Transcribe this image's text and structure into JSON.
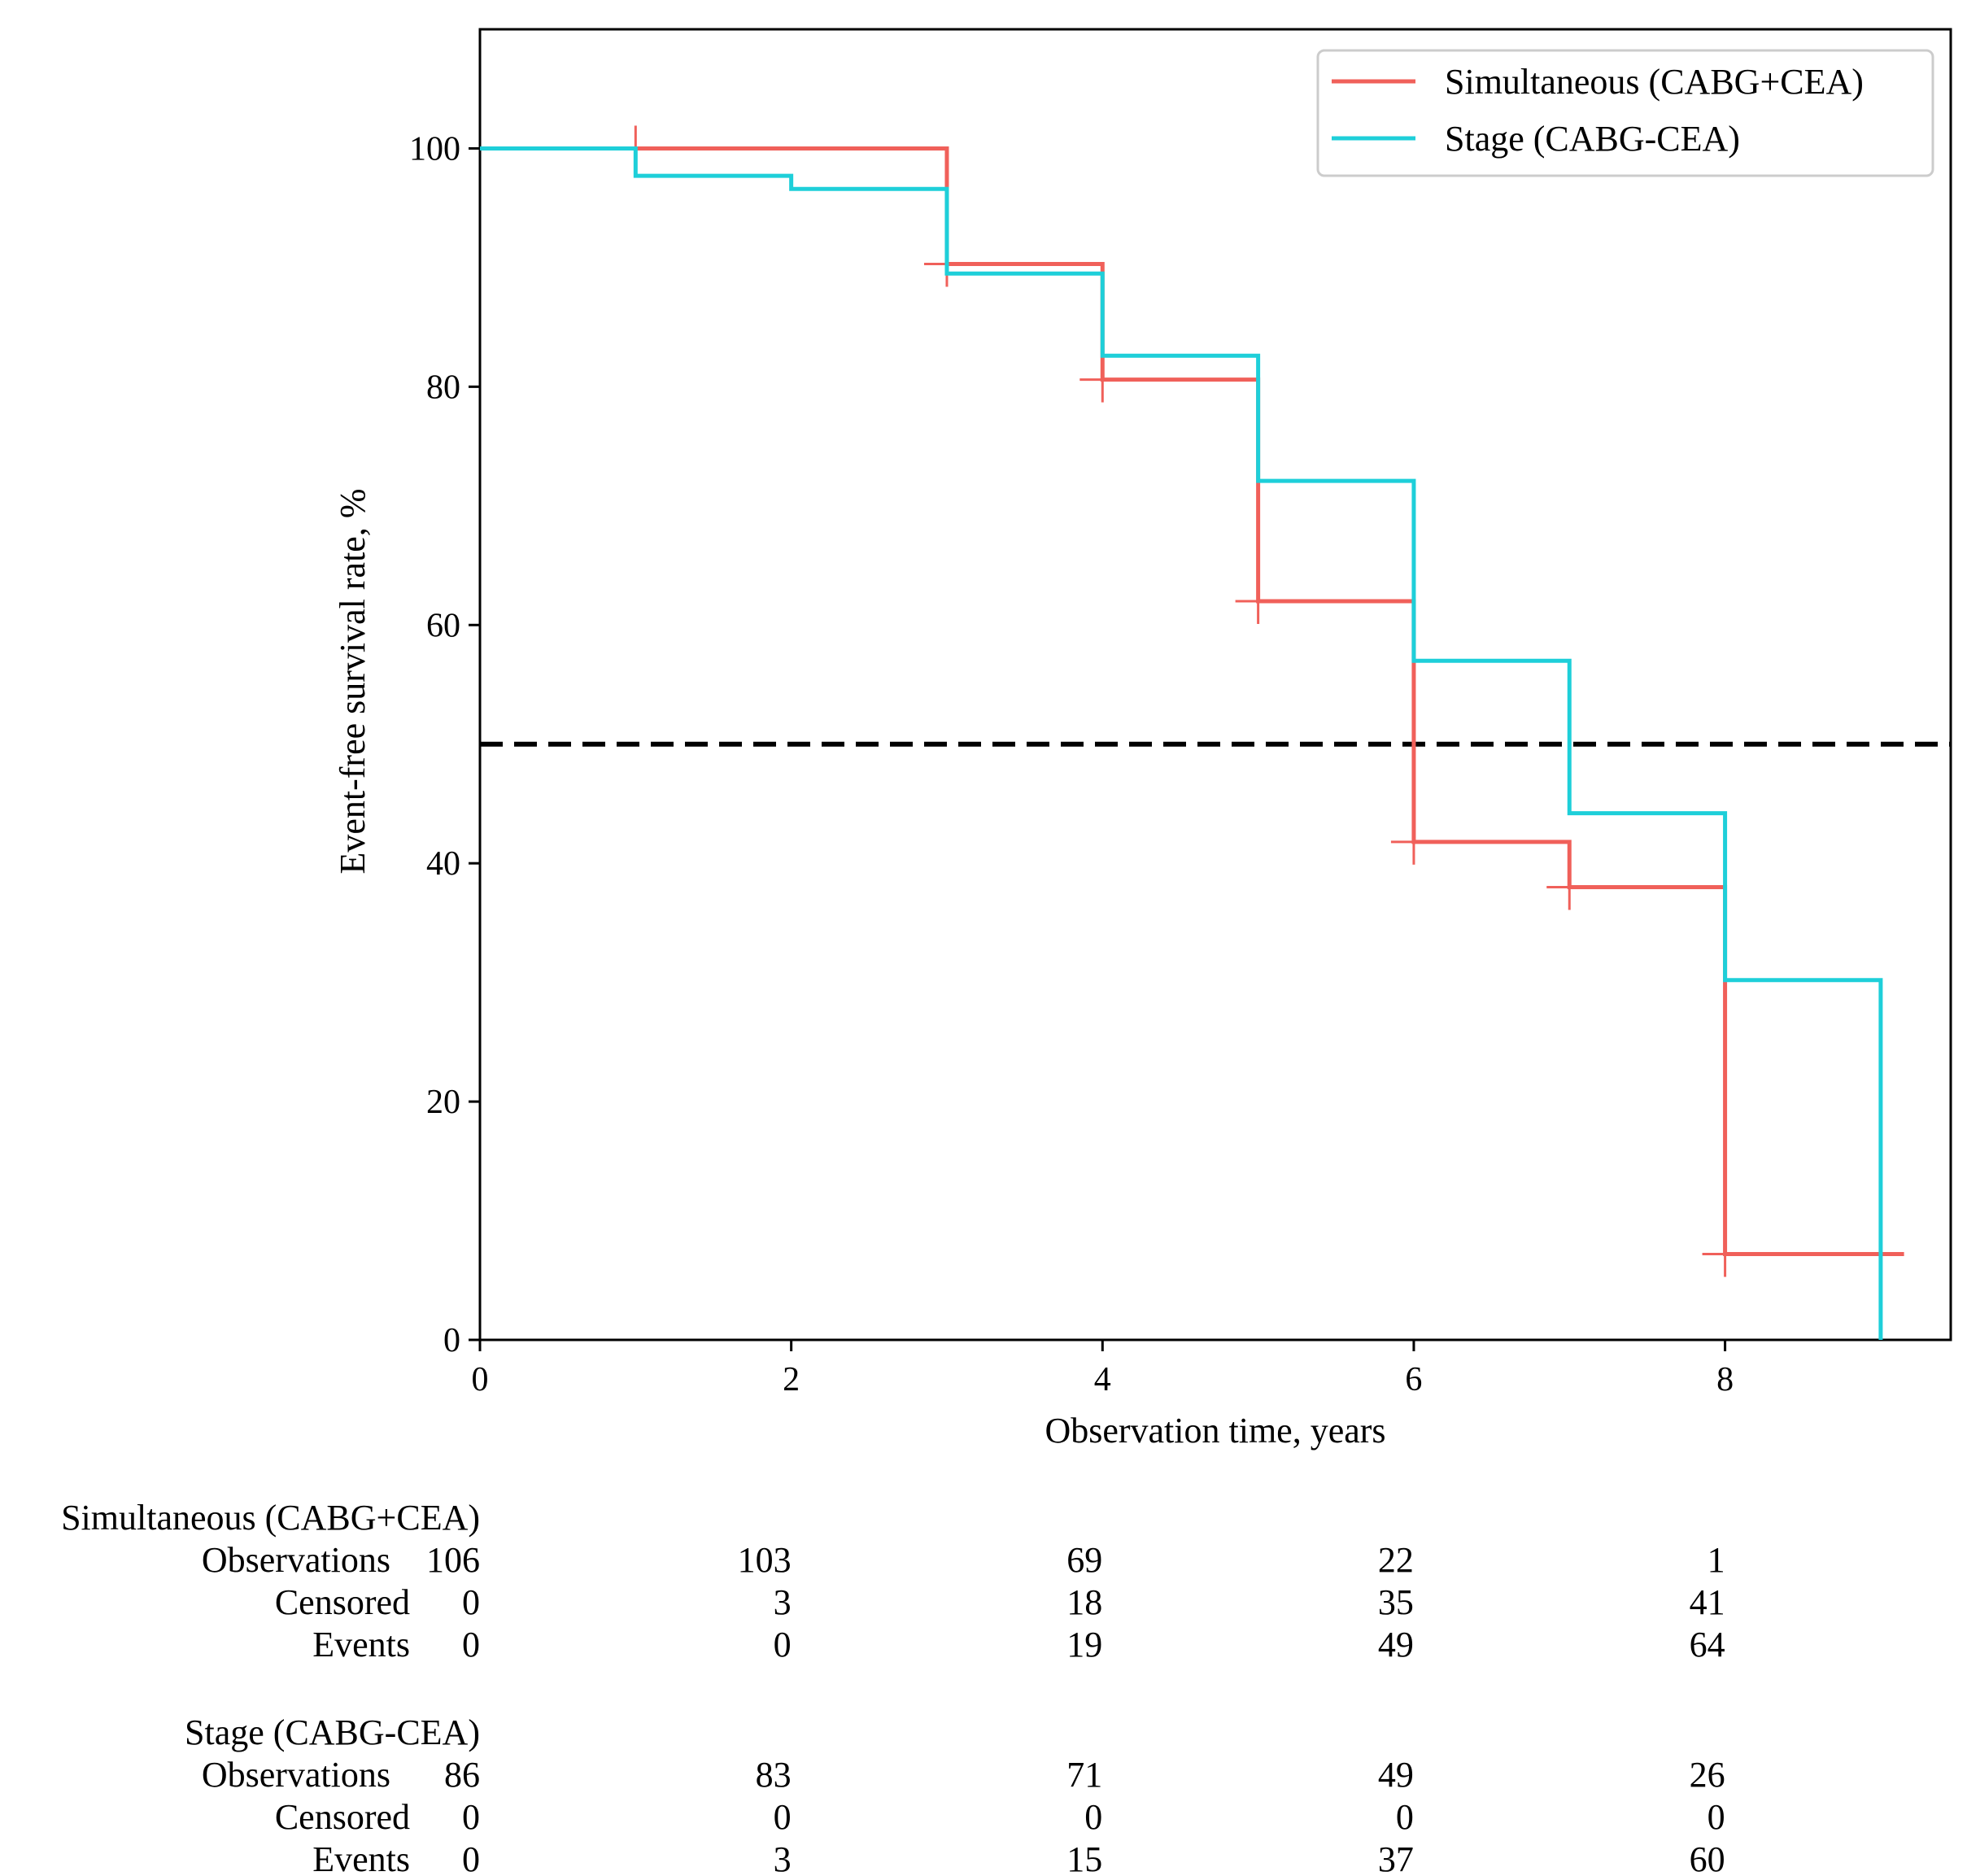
{
  "chart_data": {
    "type": "line",
    "subtype": "kaplan-meier step",
    "xlabel": "Observation time, years",
    "ylabel": "Event-free survival rate, %",
    "xlim": [
      0,
      9.45
    ],
    "ylim": [
      0,
      110
    ],
    "xticks": [
      0,
      2,
      4,
      6,
      8
    ],
    "yticks": [
      0,
      20,
      40,
      60,
      80,
      100
    ],
    "grid": false,
    "legend_position": "top-right",
    "reference_line": {
      "y": 50,
      "style": "dashed",
      "color": "#000000"
    },
    "series": [
      {
        "name": "Simultaneous (CABG+CEA)",
        "color": "#f0605a",
        "steps": [
          {
            "x": 0,
            "y": 100
          },
          {
            "x": 3,
            "y": 90.3
          },
          {
            "x": 4,
            "y": 80.6
          },
          {
            "x": 5,
            "y": 62.0
          },
          {
            "x": 6,
            "y": 41.8
          },
          {
            "x": 7,
            "y": 38.0
          },
          {
            "x": 8,
            "y": 7.2
          }
        ],
        "end_x": 9.15,
        "censor_marks": [
          {
            "x": 1,
            "y": 100
          },
          {
            "x": 3,
            "y": 90.3
          },
          {
            "x": 4,
            "y": 80.6
          },
          {
            "x": 5,
            "y": 62.0
          },
          {
            "x": 6,
            "y": 41.8
          },
          {
            "x": 7,
            "y": 38.0
          },
          {
            "x": 8,
            "y": 7.2
          }
        ]
      },
      {
        "name": "Stage (CABG-CEA)",
        "color": "#1ecfd9",
        "steps": [
          {
            "x": 0,
            "y": 100
          },
          {
            "x": 1,
            "y": 97.7
          },
          {
            "x": 2,
            "y": 96.6
          },
          {
            "x": 3,
            "y": 89.5
          },
          {
            "x": 4,
            "y": 82.6
          },
          {
            "x": 5,
            "y": 72.1
          },
          {
            "x": 6,
            "y": 57.0
          },
          {
            "x": 7,
            "y": 44.2
          },
          {
            "x": 8,
            "y": 30.2
          },
          {
            "x": 9,
            "y": 0
          }
        ],
        "end_x": 9,
        "censor_marks": []
      }
    ]
  },
  "risk_table": {
    "row_labels": {
      "observations": "Observations",
      "censored": "Censored",
      "events": "Events"
    },
    "groups": [
      {
        "name": "Simultaneous (CABG+CEA)",
        "observations": [
          "106",
          "103",
          "69",
          "22",
          "1"
        ],
        "censored": [
          "0",
          "3",
          "18",
          "35",
          "41"
        ],
        "events": [
          "0",
          "0",
          "19",
          "49",
          "64"
        ]
      },
      {
        "name": "Stage (CABG-CEA)",
        "observations": [
          "86",
          "83",
          "71",
          "49",
          "26"
        ],
        "censored": [
          "0",
          "0",
          "0",
          "0",
          "0"
        ],
        "events": [
          "0",
          "3",
          "15",
          "37",
          "60"
        ]
      }
    ]
  }
}
